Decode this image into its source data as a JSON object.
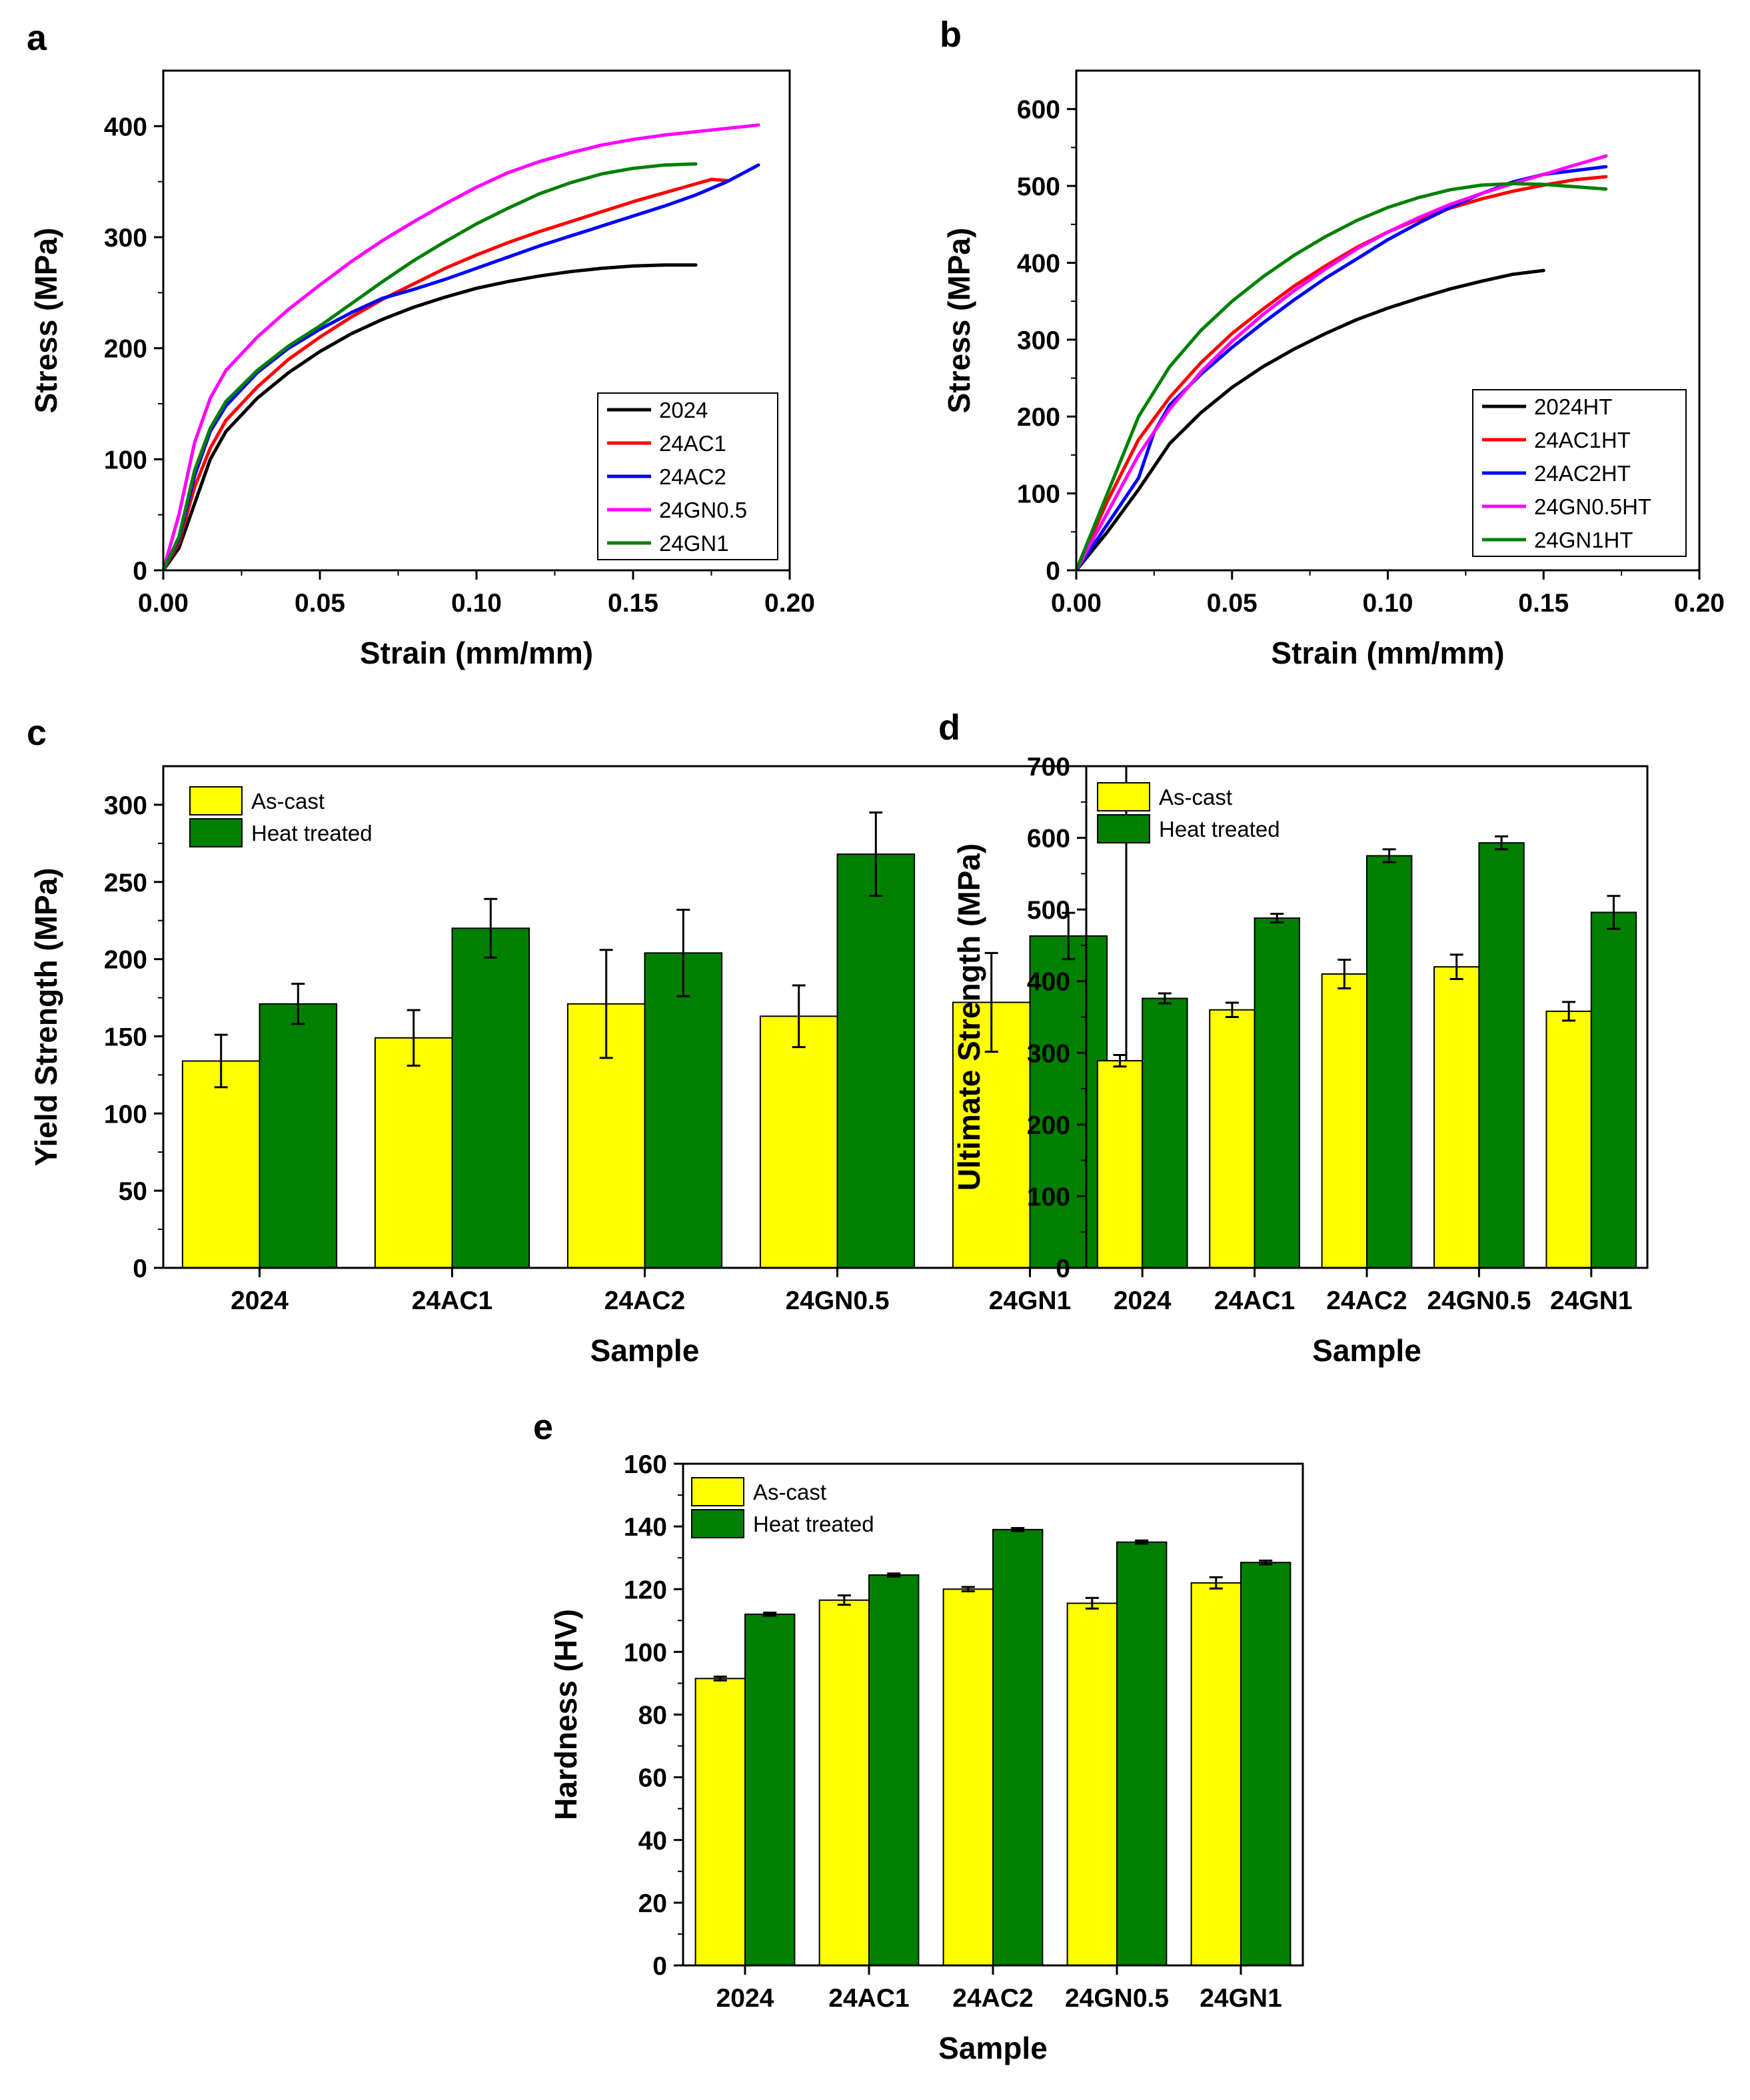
{
  "colors": {
    "black": "#000000",
    "red": "#ff0000",
    "blue": "#0000ff",
    "magenta": "#ff00ff",
    "green": "#008000",
    "as_cast": "#ffff00",
    "heat_treated": "#008000"
  },
  "chart_data": [
    {
      "panel": "a",
      "type": "line",
      "xlabel": "Strain (mm/mm)",
      "ylabel": "Stress (MPa)",
      "xlim": [
        0,
        0.2
      ],
      "ylim": [
        0,
        450
      ],
      "xticks": [
        "0.00",
        "0.05",
        "0.10",
        "0.15",
        "0.20"
      ],
      "yticks": [
        "0",
        "100",
        "200",
        "300",
        "400"
      ],
      "legend_position": "bottom-right",
      "series": [
        {
          "name": "2024",
          "color": "#000000",
          "points": [
            [
              0,
              0
            ],
            [
              0.005,
              20
            ],
            [
              0.01,
              60
            ],
            [
              0.015,
              100
            ],
            [
              0.02,
              125
            ],
            [
              0.03,
              155
            ],
            [
              0.04,
              178
            ],
            [
              0.05,
              197
            ],
            [
              0.06,
              213
            ],
            [
              0.07,
              226
            ],
            [
              0.08,
              237
            ],
            [
              0.09,
              246
            ],
            [
              0.1,
              254
            ],
            [
              0.11,
              260
            ],
            [
              0.12,
              265
            ],
            [
              0.13,
              269
            ],
            [
              0.14,
              272
            ],
            [
              0.15,
              274
            ],
            [
              0.16,
              275
            ],
            [
              0.17,
              275
            ]
          ]
        },
        {
          "name": "24AC1",
          "color": "#ff0000",
          "points": [
            [
              0,
              0
            ],
            [
              0.005,
              25
            ],
            [
              0.01,
              75
            ],
            [
              0.015,
              110
            ],
            [
              0.02,
              135
            ],
            [
              0.03,
              165
            ],
            [
              0.04,
              190
            ],
            [
              0.05,
              210
            ],
            [
              0.06,
              228
            ],
            [
              0.07,
              244
            ],
            [
              0.08,
              258
            ],
            [
              0.09,
              272
            ],
            [
              0.1,
              284
            ],
            [
              0.11,
              295
            ],
            [
              0.12,
              305
            ],
            [
              0.13,
              314
            ],
            [
              0.14,
              323
            ],
            [
              0.15,
              332
            ],
            [
              0.16,
              340
            ],
            [
              0.17,
              348
            ],
            [
              0.175,
              352
            ],
            [
              0.18,
              351
            ]
          ]
        },
        {
          "name": "24AC2",
          "color": "#0000ff",
          "points": [
            [
              0,
              0
            ],
            [
              0.005,
              28
            ],
            [
              0.01,
              85
            ],
            [
              0.015,
              125
            ],
            [
              0.02,
              148
            ],
            [
              0.03,
              178
            ],
            [
              0.04,
              200
            ],
            [
              0.05,
              217
            ],
            [
              0.06,
              232
            ],
            [
              0.07,
              245
            ],
            [
              0.08,
              253
            ],
            [
              0.09,
              262
            ],
            [
              0.1,
              272
            ],
            [
              0.11,
              282
            ],
            [
              0.12,
              292
            ],
            [
              0.13,
              301
            ],
            [
              0.14,
              310
            ],
            [
              0.15,
              319
            ],
            [
              0.16,
              328
            ],
            [
              0.17,
              338
            ],
            [
              0.18,
              350
            ],
            [
              0.19,
              365
            ]
          ]
        },
        {
          "name": "24GN0.5",
          "color": "#ff00ff",
          "points": [
            [
              0,
              0
            ],
            [
              0.005,
              50
            ],
            [
              0.01,
              115
            ],
            [
              0.015,
              155
            ],
            [
              0.02,
              180
            ],
            [
              0.03,
              210
            ],
            [
              0.04,
              235
            ],
            [
              0.05,
              257
            ],
            [
              0.06,
              278
            ],
            [
              0.07,
              297
            ],
            [
              0.08,
              314
            ],
            [
              0.09,
              330
            ],
            [
              0.1,
              345
            ],
            [
              0.11,
              358
            ],
            [
              0.12,
              368
            ],
            [
              0.13,
              376
            ],
            [
              0.14,
              383
            ],
            [
              0.15,
              388
            ],
            [
              0.16,
              392
            ],
            [
              0.17,
              395
            ],
            [
              0.18,
              398
            ],
            [
              0.19,
              401
            ]
          ]
        },
        {
          "name": "24GN1",
          "color": "#008000",
          "points": [
            [
              0,
              0
            ],
            [
              0.005,
              30
            ],
            [
              0.01,
              90
            ],
            [
              0.015,
              128
            ],
            [
              0.02,
              152
            ],
            [
              0.03,
              180
            ],
            [
              0.04,
              202
            ],
            [
              0.05,
              220
            ],
            [
              0.06,
              240
            ],
            [
              0.07,
              260
            ],
            [
              0.08,
              279
            ],
            [
              0.09,
              296
            ],
            [
              0.1,
              312
            ],
            [
              0.11,
              326
            ],
            [
              0.12,
              339
            ],
            [
              0.13,
              349
            ],
            [
              0.14,
              357
            ],
            [
              0.15,
              362
            ],
            [
              0.16,
              365
            ],
            [
              0.17,
              366
            ]
          ]
        }
      ]
    },
    {
      "panel": "b",
      "type": "line",
      "xlabel": "Strain (mm/mm)",
      "ylabel": "Stress (MPa)",
      "xlim": [
        0,
        0.2
      ],
      "ylim": [
        0,
        650
      ],
      "xticks": [
        "0.00",
        "0.05",
        "0.10",
        "0.15",
        "0.20"
      ],
      "yticks": [
        "0",
        "100",
        "200",
        "300",
        "400",
        "500",
        "600"
      ],
      "legend_position": "bottom-right",
      "series": [
        {
          "name": "2024HT",
          "color": "#000000",
          "points": [
            [
              0,
              0
            ],
            [
              0.01,
              50
            ],
            [
              0.02,
              105
            ],
            [
              0.03,
              165
            ],
            [
              0.04,
              205
            ],
            [
              0.05,
              238
            ],
            [
              0.06,
              265
            ],
            [
              0.07,
              288
            ],
            [
              0.08,
              308
            ],
            [
              0.09,
              326
            ],
            [
              0.1,
              341
            ],
            [
              0.11,
              354
            ],
            [
              0.12,
              366
            ],
            [
              0.13,
              376
            ],
            [
              0.14,
              385
            ],
            [
              0.15,
              390
            ]
          ]
        },
        {
          "name": "24AC1HT",
          "color": "#ff0000",
          "points": [
            [
              0,
              0
            ],
            [
              0.01,
              90
            ],
            [
              0.02,
              170
            ],
            [
              0.03,
              225
            ],
            [
              0.04,
              270
            ],
            [
              0.05,
              308
            ],
            [
              0.06,
              340
            ],
            [
              0.07,
              370
            ],
            [
              0.08,
              396
            ],
            [
              0.09,
              420
            ],
            [
              0.1,
              440
            ],
            [
              0.11,
              457
            ],
            [
              0.12,
              471
            ],
            [
              0.13,
              483
            ],
            [
              0.14,
              493
            ],
            [
              0.15,
              501
            ],
            [
              0.16,
              508
            ],
            [
              0.17,
              512
            ]
          ]
        },
        {
          "name": "24AC2HT",
          "color": "#0000ff",
          "points": [
            [
              0,
              0
            ],
            [
              0.01,
              60
            ],
            [
              0.02,
              120
            ],
            [
              0.025,
              180
            ],
            [
              0.03,
              215
            ],
            [
              0.04,
              255
            ],
            [
              0.05,
              290
            ],
            [
              0.06,
              322
            ],
            [
              0.07,
              352
            ],
            [
              0.08,
              380
            ],
            [
              0.09,
              405
            ],
            [
              0.1,
              430
            ],
            [
              0.11,
              452
            ],
            [
              0.12,
              472
            ],
            [
              0.13,
              490
            ],
            [
              0.14,
              505
            ],
            [
              0.15,
              515
            ],
            [
              0.16,
              520
            ],
            [
              0.17,
              525
            ]
          ]
        },
        {
          "name": "24GN0.5HT",
          "color": "#ff00ff",
          "points": [
            [
              0,
              0
            ],
            [
              0.01,
              75
            ],
            [
              0.02,
              150
            ],
            [
              0.03,
              210
            ],
            [
              0.04,
              258
            ],
            [
              0.05,
              298
            ],
            [
              0.06,
              333
            ],
            [
              0.07,
              364
            ],
            [
              0.08,
              392
            ],
            [
              0.09,
              418
            ],
            [
              0.1,
              440
            ],
            [
              0.11,
              459
            ],
            [
              0.12,
              476
            ],
            [
              0.13,
              490
            ],
            [
              0.14,
              503
            ],
            [
              0.15,
              515
            ],
            [
              0.16,
              527
            ],
            [
              0.17,
              539
            ]
          ]
        },
        {
          "name": "24GN1HT",
          "color": "#008000",
          "points": [
            [
              0,
              0
            ],
            [
              0.01,
              100
            ],
            [
              0.02,
              200
            ],
            [
              0.03,
              265
            ],
            [
              0.04,
              312
            ],
            [
              0.05,
              350
            ],
            [
              0.06,
              382
            ],
            [
              0.07,
              410
            ],
            [
              0.08,
              434
            ],
            [
              0.09,
              455
            ],
            [
              0.1,
              472
            ],
            [
              0.11,
              485
            ],
            [
              0.12,
              495
            ],
            [
              0.13,
              501
            ],
            [
              0.14,
              503
            ],
            [
              0.15,
              502
            ],
            [
              0.16,
              499
            ],
            [
              0.17,
              496
            ]
          ]
        }
      ]
    },
    {
      "panel": "c",
      "type": "bar",
      "xlabel": "Sample",
      "ylabel": "Yield Strength (MPa)",
      "ylim": [
        0,
        325
      ],
      "yticks": [
        "0",
        "50",
        "100",
        "150",
        "200",
        "250",
        "300"
      ],
      "categories": [
        "2024",
        "24AC1",
        "24AC2",
        "24GN0.5",
        "24GN1"
      ],
      "legend_position": "top-left",
      "series": [
        {
          "name": "As-cast",
          "color": "#ffff00",
          "values": [
            134,
            149,
            171,
            163,
            172
          ],
          "errors": [
            17,
            18,
            35,
            20,
            32
          ]
        },
        {
          "name": "Heat treated",
          "color": "#008000",
          "values": [
            171,
            220,
            204,
            268,
            215
          ],
          "errors": [
            13,
            19,
            28,
            27,
            15
          ]
        }
      ]
    },
    {
      "panel": "d",
      "type": "bar",
      "xlabel": "Sample",
      "ylabel": "Ultimate Strength (MPa)",
      "ylim": [
        0,
        700
      ],
      "yticks": [
        "0",
        "100",
        "200",
        "300",
        "400",
        "500",
        "600",
        "700"
      ],
      "categories": [
        "2024",
        "24AC1",
        "24AC2",
        "24GN0.5",
        "24GN1"
      ],
      "legend_position": "top-left",
      "series": [
        {
          "name": "As-cast",
          "color": "#ffff00",
          "values": [
            289,
            360,
            410,
            420,
            358
          ],
          "errors": [
            8,
            10,
            20,
            17,
            13
          ]
        },
        {
          "name": "Heat treated",
          "color": "#008000",
          "values": [
            376,
            488,
            575,
            593,
            496
          ],
          "errors": [
            7,
            6,
            9,
            9,
            23
          ]
        }
      ]
    },
    {
      "panel": "e",
      "type": "bar",
      "xlabel": "Sample",
      "ylabel": "Hardness (HV)",
      "ylim": [
        0,
        160
      ],
      "yticks": [
        "0",
        "20",
        "40",
        "60",
        "80",
        "100",
        "120",
        "140",
        "160"
      ],
      "categories": [
        "2024",
        "24AC1",
        "24AC2",
        "24GN0.5",
        "24GN1"
      ],
      "legend_position": "top-left",
      "series": [
        {
          "name": "As-cast",
          "color": "#ffff00",
          "values": [
            91.5,
            116.5,
            120,
            115.5,
            122
          ],
          "errors": [
            0.6,
            1.5,
            0.7,
            1.7,
            1.8
          ]
        },
        {
          "name": "Heat treated",
          "color": "#008000",
          "values": [
            112,
            124.5,
            139,
            135,
            128.5
          ],
          "errors": [
            0.5,
            0.5,
            0.5,
            0.5,
            0.6
          ]
        }
      ]
    }
  ]
}
